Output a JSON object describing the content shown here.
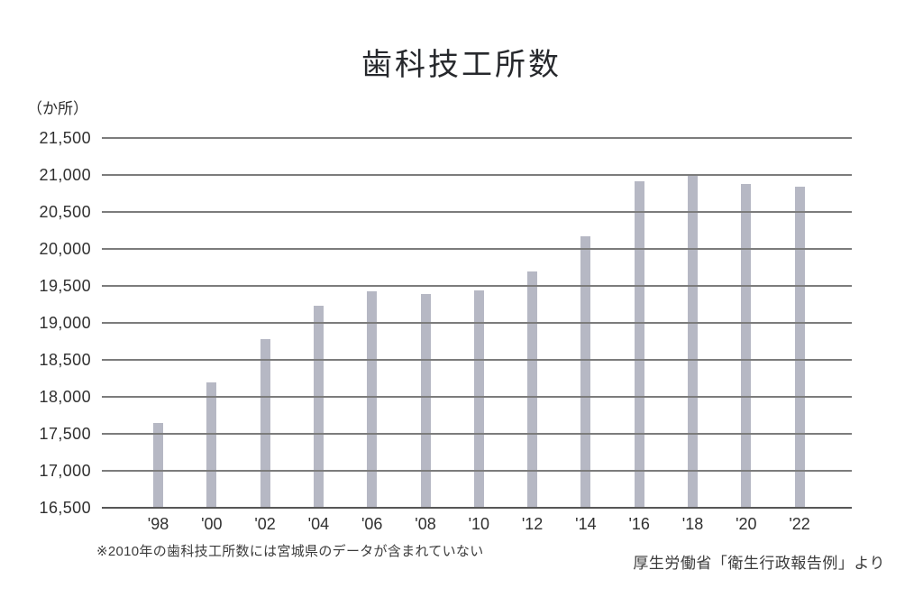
{
  "chart_data": {
    "type": "bar",
    "title": "歯科技工所数",
    "unit_label": "（か所）",
    "xlabel": "",
    "ylabel": "か所",
    "categories": [
      "'98",
      "'00",
      "'02",
      "'04",
      "'06",
      "'08",
      "'10",
      "'12",
      "'14",
      "'16",
      "'18",
      "'20",
      "'22"
    ],
    "values": [
      17650,
      18200,
      18775,
      19230,
      19430,
      19385,
      19445,
      19700,
      20175,
      20915,
      21010,
      20880,
      20840
    ],
    "ylim": [
      16500,
      21500
    ],
    "ytick_step": 500,
    "grid": true,
    "legend_position": "none",
    "bar_color": "#b6b8c4",
    "gridline_color": "#7c7c7c",
    "axis_color": "#565656",
    "text_color": "#2d2d2d",
    "footnote": "※2010年の歯科技工所数には宮城県のデータが含まれていない",
    "source": "厚生労働省「衛生行政報告例」より"
  }
}
